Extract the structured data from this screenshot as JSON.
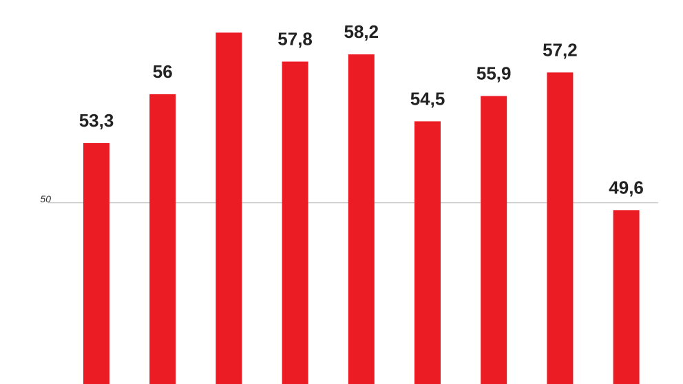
{
  "chart_data": {
    "type": "bar",
    "values": [
      53.3,
      56,
      59.4,
      57.8,
      58.2,
      54.5,
      55.9,
      57.2,
      49.6
    ],
    "value_labels": [
      "53,3",
      "56",
      "",
      "57,8",
      "58,2",
      "54,5",
      "55,9",
      "57,2",
      "49,6"
    ],
    "yticks": [
      50
    ],
    "ytick_labels": [
      "50"
    ],
    "ylim": [
      40,
      59.8
    ],
    "grid": "y-reference-line",
    "bar_color": "#ec1c24",
    "label_color": "#222222",
    "gridline_color": "#b5b5b5"
  }
}
